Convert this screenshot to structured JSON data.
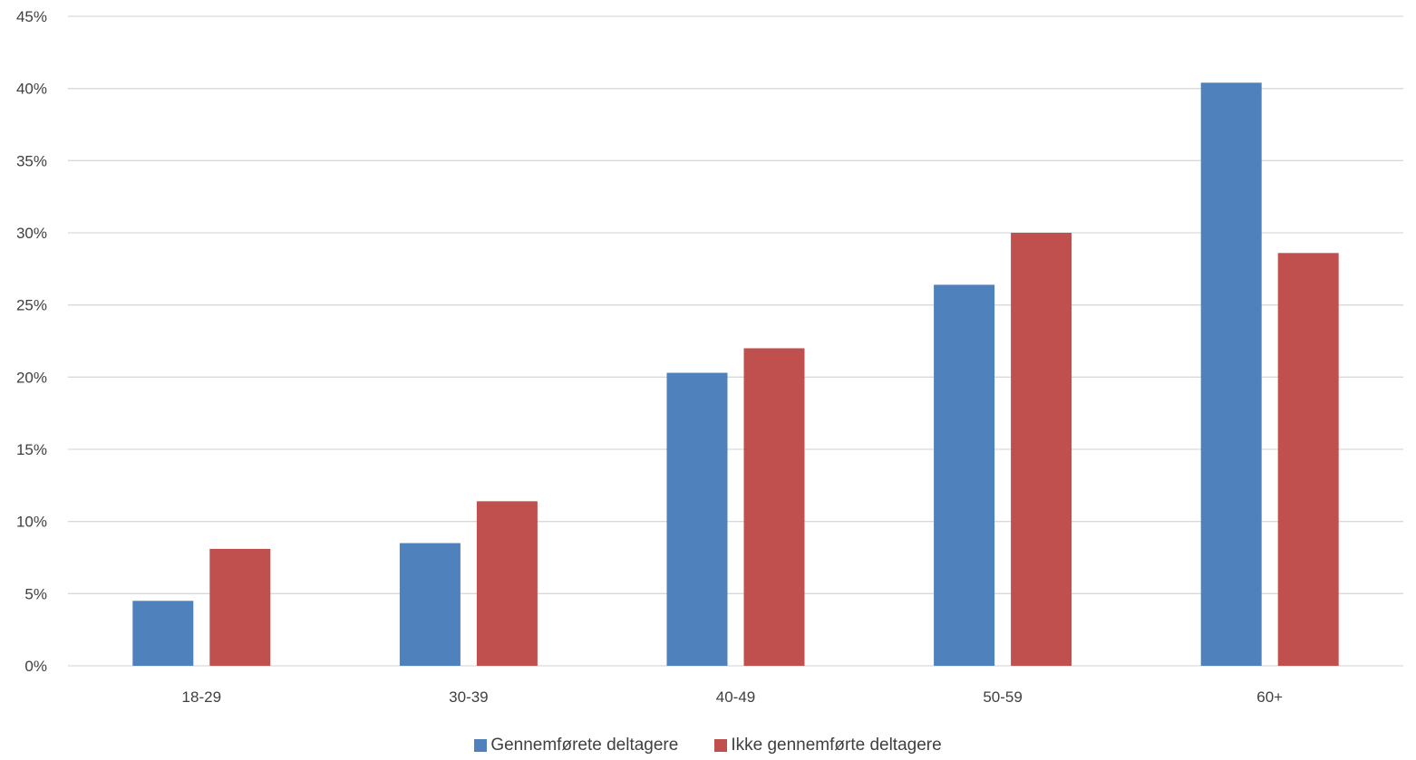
{
  "chart_data": {
    "type": "bar",
    "categories": [
      "18-29",
      "30-39",
      "40-49",
      "50-59",
      "60+"
    ],
    "series": [
      {
        "name": "Gennemførete deltagere",
        "color": "#4F81BD",
        "values": [
          4.5,
          8.5,
          20.3,
          26.4,
          40.4
        ]
      },
      {
        "name": "Ikke gennemførte deltagere",
        "color": "#C0504D",
        "values": [
          8.1,
          11.4,
          22.0,
          30.0,
          28.6
        ]
      }
    ],
    "yticks": [
      "0%",
      "5%",
      "10%",
      "15%",
      "20%",
      "25%",
      "30%",
      "35%",
      "40%",
      "45%"
    ],
    "ylim": [
      0,
      45
    ],
    "y_unit": "%",
    "grid": true,
    "gridline_color": "#D9D9D9",
    "legend_position": "bottom"
  }
}
